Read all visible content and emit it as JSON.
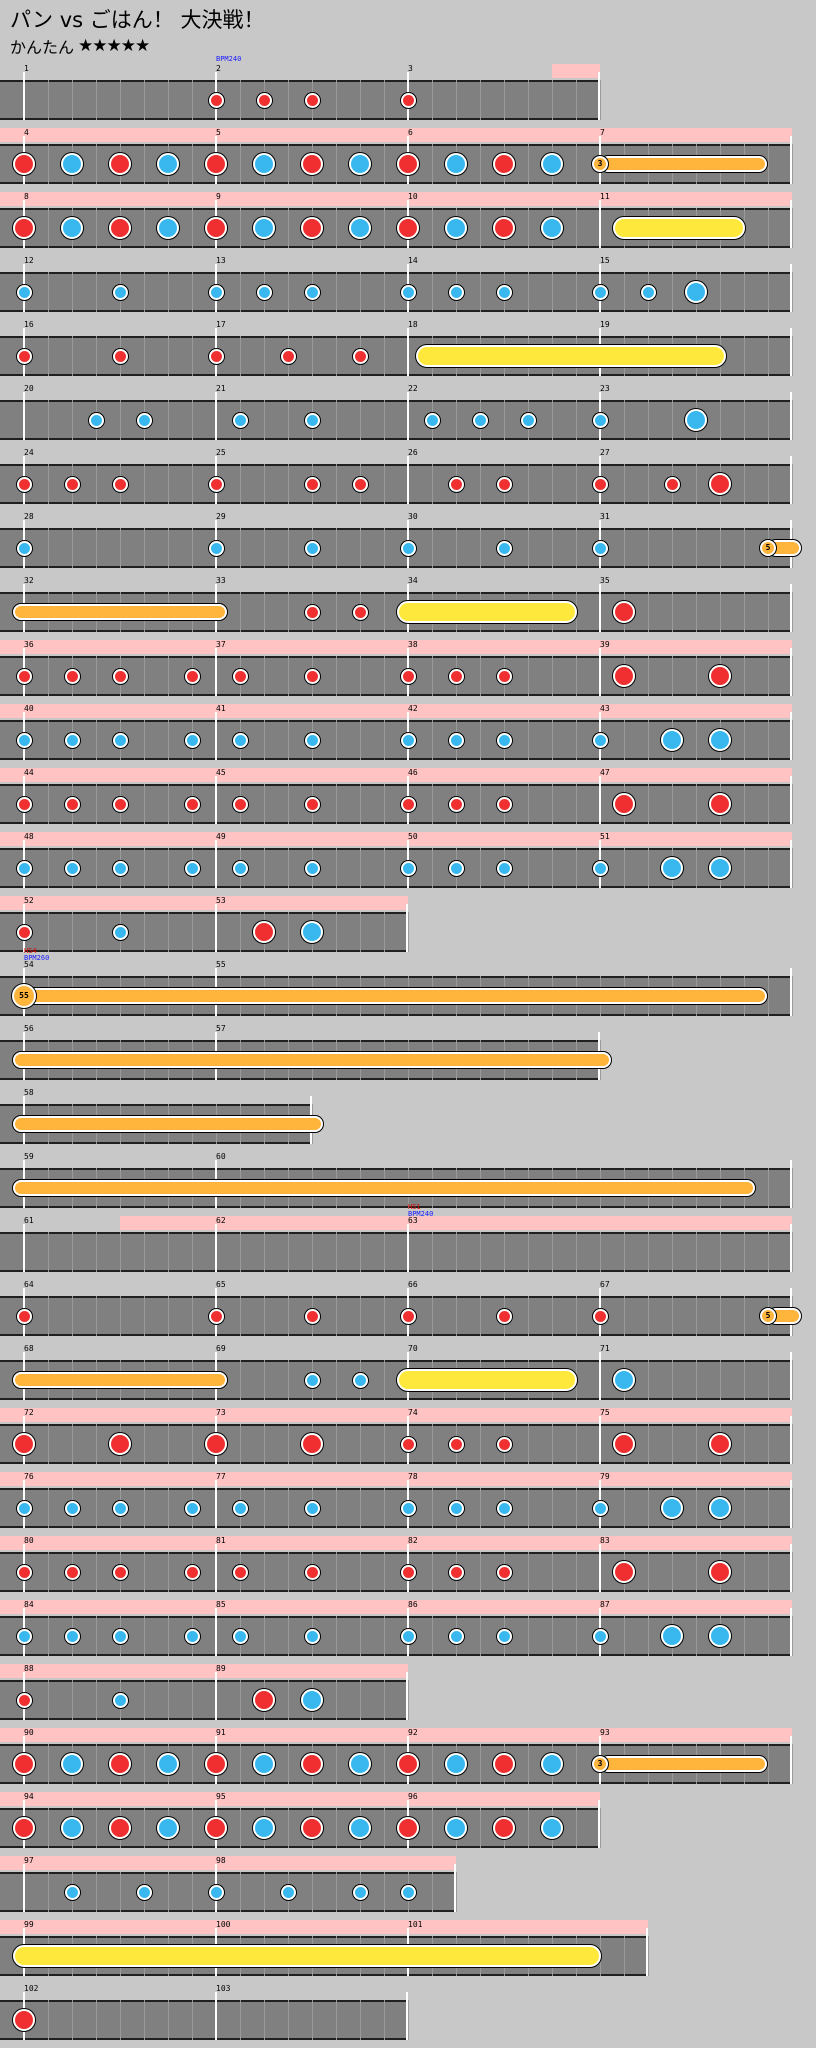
{
  "header": {
    "title": "パン vs ごはん！ 大決戦！",
    "course": "かんたん",
    "stars": "★★★★★"
  },
  "colors": {
    "background": "#c8c8c8",
    "lane": "#808080",
    "gogo": "#ffc3c3",
    "don": "#f03030",
    "ka": "#38b8ef",
    "drumroll": "#ffb43c",
    "big_drumroll": "#ffe83c",
    "barline": "#ffffff"
  },
  "rows": [
    {
      "measures": [
        1,
        2,
        3
      ],
      "len": 12,
      "events": [
        {
          "m": 1,
          "text": "BPM240",
          "type": "bpm"
        }
      ],
      "gogo": [
        [
          11,
          12
        ]
      ],
      "notes": [
        [
          "d",
          4
        ],
        [
          "d",
          5
        ],
        [
          "d",
          6
        ],
        [
          "d",
          8
        ]
      ]
    },
    {
      "measures": [
        4,
        5,
        6,
        7
      ],
      "len": 16,
      "gogo": [
        [
          0,
          16
        ]
      ],
      "notes": [
        [
          "D",
          0
        ],
        [
          "K",
          1
        ],
        [
          "D",
          2
        ],
        [
          "K",
          3
        ],
        [
          "D",
          4
        ],
        [
          "K",
          5
        ],
        [
          "D",
          6
        ],
        [
          "K",
          7
        ],
        [
          "D",
          8
        ],
        [
          "K",
          9
        ],
        [
          "D",
          10
        ],
        [
          "K",
          11
        ]
      ],
      "rolls": [
        [
          "b",
          12,
          15.3,
          "3"
        ]
      ]
    },
    {
      "measures": [
        8,
        9,
        10,
        11
      ],
      "len": 16,
      "gogo": [
        [
          0,
          16
        ]
      ],
      "notes": [
        [
          "D",
          0
        ],
        [
          "K",
          1
        ],
        [
          "D",
          2
        ],
        [
          "K",
          3
        ],
        [
          "D",
          4
        ],
        [
          "K",
          5
        ],
        [
          "D",
          6
        ],
        [
          "K",
          7
        ],
        [
          "D",
          8
        ],
        [
          "K",
          9
        ],
        [
          "D",
          10
        ],
        [
          "K",
          11
        ]
      ],
      "rolls": [
        [
          "y",
          12.5,
          14.8
        ]
      ]
    },
    {
      "measures": [
        12,
        13,
        14,
        15
      ],
      "len": 16,
      "notes": [
        [
          "k",
          0
        ],
        [
          "k",
          2
        ],
        [
          "k",
          4
        ],
        [
          "k",
          5
        ],
        [
          "k",
          6
        ],
        [
          "k",
          8
        ],
        [
          "k",
          9
        ],
        [
          "k",
          10
        ],
        [
          "k",
          12
        ],
        [
          "k",
          13
        ],
        [
          "K",
          14
        ]
      ]
    },
    {
      "measures": [
        16,
        17,
        18,
        19
      ],
      "len": 16,
      "notes": [
        [
          "d",
          0
        ],
        [
          "d",
          2
        ],
        [
          "d",
          4
        ],
        [
          "d",
          5.5
        ],
        [
          "d",
          7
        ]
      ],
      "rolls": [
        [
          "y",
          8.4,
          14.4
        ]
      ]
    },
    {
      "measures": [
        20,
        21,
        22,
        23
      ],
      "len": 16,
      "notes": [
        [
          "k",
          1.5
        ],
        [
          "k",
          2.5
        ],
        [
          "k",
          4.5
        ],
        [
          "k",
          6
        ],
        [
          "k",
          8.5
        ],
        [
          "k",
          9.5
        ],
        [
          "k",
          10.5
        ],
        [
          "k",
          12
        ],
        [
          "K",
          14
        ]
      ]
    },
    {
      "measures": [
        24,
        25,
        26,
        27
      ],
      "len": 16,
      "notes": [
        [
          "d",
          0
        ],
        [
          "d",
          1
        ],
        [
          "d",
          2
        ],
        [
          "d",
          4
        ],
        [
          "d",
          6
        ],
        [
          "d",
          7
        ],
        [
          "d",
          9
        ],
        [
          "d",
          10
        ],
        [
          "d",
          12
        ],
        [
          "d",
          13.5
        ],
        [
          "D",
          14.5
        ]
      ]
    },
    {
      "measures": [
        28,
        29,
        30,
        31
      ],
      "len": 16,
      "notes": [
        [
          "k",
          0
        ],
        [
          "k",
          4
        ],
        [
          "k",
          6
        ],
        [
          "k",
          8
        ],
        [
          "k",
          10
        ],
        [
          "k",
          12
        ]
      ],
      "rolls": [
        [
          "b",
          15.5,
          16,
          "5"
        ]
      ]
    },
    {
      "measures": [
        32,
        33,
        34,
        35
      ],
      "len": 16,
      "notes": [
        [
          "d",
          6
        ],
        [
          "d",
          7
        ],
        [
          "D",
          12.5
        ]
      ],
      "rolls": [
        [
          "o",
          0,
          4
        ],
        [
          "y",
          8,
          11.3
        ]
      ]
    },
    {
      "measures": [
        36,
        37,
        38,
        39
      ],
      "len": 16,
      "gogo": [
        [
          0,
          16
        ]
      ],
      "notes": [
        [
          "d",
          0
        ],
        [
          "d",
          1
        ],
        [
          "d",
          2
        ],
        [
          "d",
          3.5
        ],
        [
          "d",
          4.5
        ],
        [
          "d",
          6
        ],
        [
          "d",
          8
        ],
        [
          "d",
          9
        ],
        [
          "d",
          10
        ],
        [
          "D",
          12.5
        ],
        [
          "D",
          14.5
        ]
      ]
    },
    {
      "measures": [
        40,
        41,
        42,
        43
      ],
      "len": 16,
      "gogo": [
        [
          0,
          16
        ]
      ],
      "notes": [
        [
          "k",
          0
        ],
        [
          "k",
          1
        ],
        [
          "k",
          2
        ],
        [
          "k",
          3.5
        ],
        [
          "k",
          4.5
        ],
        [
          "k",
          6
        ],
        [
          "k",
          8
        ],
        [
          "k",
          9
        ],
        [
          "k",
          10
        ],
        [
          "k",
          12
        ],
        [
          "K",
          13.5
        ],
        [
          "K",
          14.5
        ]
      ]
    },
    {
      "measures": [
        44,
        45,
        46,
        47
      ],
      "len": 16,
      "gogo": [
        [
          0,
          16
        ]
      ],
      "notes": [
        [
          "d",
          0
        ],
        [
          "d",
          1
        ],
        [
          "d",
          2
        ],
        [
          "d",
          3.5
        ],
        [
          "d",
          4.5
        ],
        [
          "d",
          6
        ],
        [
          "d",
          8
        ],
        [
          "d",
          9
        ],
        [
          "d",
          10
        ],
        [
          "D",
          12.5
        ],
        [
          "D",
          14.5
        ]
      ]
    },
    {
      "measures": [
        48,
        49,
        50,
        51
      ],
      "len": 16,
      "gogo": [
        [
          0,
          16
        ]
      ],
      "notes": [
        [
          "k",
          0
        ],
        [
          "k",
          1
        ],
        [
          "k",
          2
        ],
        [
          "k",
          3.5
        ],
        [
          "k",
          4.5
        ],
        [
          "k",
          6
        ],
        [
          "k",
          8
        ],
        [
          "k",
          9
        ],
        [
          "k",
          10
        ],
        [
          "k",
          12
        ],
        [
          "K",
          13.5
        ],
        [
          "K",
          14.5
        ]
      ]
    },
    {
      "measures": [
        52,
        53
      ],
      "len": 8,
      "gogo": [
        [
          0,
          8
        ]
      ],
      "notes": [
        [
          "d",
          0
        ],
        [
          "k",
          2
        ],
        [
          "D",
          5
        ],
        [
          "K",
          6
        ]
      ]
    },
    {
      "measures": [
        54,
        55
      ],
      "len": 16,
      "events": [
        {
          "m": 0,
          "text": "HS4",
          "type": "hs"
        },
        {
          "m": 0,
          "text": "BPM260",
          "type": "bpm"
        }
      ],
      "rolls": [
        [
          "b",
          0,
          15.3,
          "55"
        ]
      ]
    },
    {
      "measures": [
        56,
        57
      ],
      "len": 12,
      "rolls": [
        [
          "o",
          0,
          12
        ]
      ]
    },
    {
      "measures": [
        58
      ],
      "len": 6,
      "rolls": [
        [
          "o",
          0,
          6
        ]
      ]
    },
    {
      "measures": [
        59,
        60
      ],
      "len": 16,
      "rolls": [
        [
          "o",
          0,
          15
        ]
      ]
    },
    {
      "measures": [
        61,
        62,
        63
      ],
      "len": 16,
      "events": [
        {
          "m": 2,
          "text": "HS1",
          "type": "hs"
        },
        {
          "m": 2,
          "text": "BPM240",
          "type": "bpm"
        }
      ],
      "gogo": [
        [
          2,
          16
        ]
      ]
    },
    {
      "measures": [
        64,
        65,
        66,
        67
      ],
      "len": 16,
      "notes": [
        [
          "d",
          0
        ],
        [
          "d",
          4
        ],
        [
          "d",
          6
        ],
        [
          "d",
          8
        ],
        [
          "d",
          10
        ],
        [
          "d",
          12
        ]
      ],
      "rolls": [
        [
          "b",
          15.5,
          16,
          "5"
        ]
      ]
    },
    {
      "measures": [
        68,
        69,
        70,
        71
      ],
      "len": 16,
      "notes": [
        [
          "k",
          6
        ],
        [
          "k",
          7
        ],
        [
          "K",
          12.5
        ]
      ],
      "rolls": [
        [
          "o",
          0,
          4
        ],
        [
          "y",
          8,
          11.3
        ]
      ]
    },
    {
      "measures": [
        72,
        73,
        74,
        75
      ],
      "len": 16,
      "gogo": [
        [
          0,
          16
        ]
      ],
      "notes": [
        [
          "D",
          0
        ],
        [
          "D",
          2
        ],
        [
          "D",
          4
        ],
        [
          "D",
          6
        ],
        [
          "d",
          8
        ],
        [
          "d",
          9
        ],
        [
          "d",
          10
        ],
        [
          "D",
          12.5
        ],
        [
          "D",
          14.5
        ]
      ]
    },
    {
      "measures": [
        76,
        77,
        78,
        79
      ],
      "len": 16,
      "gogo": [
        [
          0,
          16
        ]
      ],
      "notes": [
        [
          "k",
          0
        ],
        [
          "k",
          1
        ],
        [
          "k",
          2
        ],
        [
          "k",
          3.5
        ],
        [
          "k",
          4.5
        ],
        [
          "k",
          6
        ],
        [
          "k",
          8
        ],
        [
          "k",
          9
        ],
        [
          "k",
          10
        ],
        [
          "k",
          12
        ],
        [
          "K",
          13.5
        ],
        [
          "K",
          14.5
        ]
      ]
    },
    {
      "measures": [
        80,
        81,
        82,
        83
      ],
      "len": 16,
      "gogo": [
        [
          0,
          16
        ]
      ],
      "notes": [
        [
          "d",
          0
        ],
        [
          "d",
          1
        ],
        [
          "d",
          2
        ],
        [
          "d",
          3.5
        ],
        [
          "d",
          4.5
        ],
        [
          "d",
          6
        ],
        [
          "d",
          8
        ],
        [
          "d",
          9
        ],
        [
          "d",
          10
        ],
        [
          "D",
          12.5
        ],
        [
          "D",
          14.5
        ]
      ]
    },
    {
      "measures": [
        84,
        85,
        86,
        87
      ],
      "len": 16,
      "gogo": [
        [
          0,
          16
        ]
      ],
      "notes": [
        [
          "k",
          0
        ],
        [
          "k",
          1
        ],
        [
          "k",
          2
        ],
        [
          "k",
          3.5
        ],
        [
          "k",
          4.5
        ],
        [
          "k",
          6
        ],
        [
          "k",
          8
        ],
        [
          "k",
          9
        ],
        [
          "k",
          10
        ],
        [
          "k",
          12
        ],
        [
          "K",
          13.5
        ],
        [
          "K",
          14.5
        ]
      ]
    },
    {
      "measures": [
        88,
        89
      ],
      "len": 8,
      "gogo": [
        [
          0,
          8
        ]
      ],
      "notes": [
        [
          "d",
          0
        ],
        [
          "k",
          2
        ],
        [
          "D",
          5
        ],
        [
          "K",
          6
        ]
      ]
    },
    {
      "measures": [
        90,
        91,
        92,
        93
      ],
      "len": 16,
      "gogo": [
        [
          0,
          16
        ]
      ],
      "notes": [
        [
          "D",
          0
        ],
        [
          "K",
          1
        ],
        [
          "D",
          2
        ],
        [
          "K",
          3
        ],
        [
          "D",
          4
        ],
        [
          "K",
          5
        ],
        [
          "D",
          6
        ],
        [
          "K",
          7
        ],
        [
          "D",
          8
        ],
        [
          "K",
          9
        ],
        [
          "D",
          10
        ],
        [
          "K",
          11
        ]
      ],
      "rolls": [
        [
          "b",
          12,
          15.3,
          "3"
        ]
      ]
    },
    {
      "measures": [
        94,
        95,
        96
      ],
      "len": 12,
      "gogo": [
        [
          0,
          12
        ]
      ],
      "notes": [
        [
          "D",
          0
        ],
        [
          "K",
          1
        ],
        [
          "D",
          2
        ],
        [
          "K",
          3
        ],
        [
          "D",
          4
        ],
        [
          "K",
          5
        ],
        [
          "D",
          6
        ],
        [
          "K",
          7
        ],
        [
          "D",
          8
        ],
        [
          "K",
          9
        ],
        [
          "D",
          10
        ],
        [
          "K",
          11
        ]
      ]
    },
    {
      "measures": [
        97,
        98
      ],
      "len": 9,
      "gogo": [
        [
          0,
          9
        ]
      ],
      "notes": [
        [
          "k",
          1
        ],
        [
          "k",
          2.5
        ],
        [
          "k",
          4
        ],
        [
          "k",
          5.5
        ],
        [
          "k",
          7
        ],
        [
          "k",
          8
        ]
      ]
    },
    {
      "measures": [
        99,
        100,
        101
      ],
      "len": 13,
      "gogo": [
        [
          0,
          13
        ]
      ],
      "rolls": [
        [
          "y",
          0,
          11.8
        ]
      ]
    },
    {
      "measures": [
        102,
        103
      ],
      "len": 8,
      "notes": [
        [
          "D",
          0
        ]
      ]
    }
  ]
}
